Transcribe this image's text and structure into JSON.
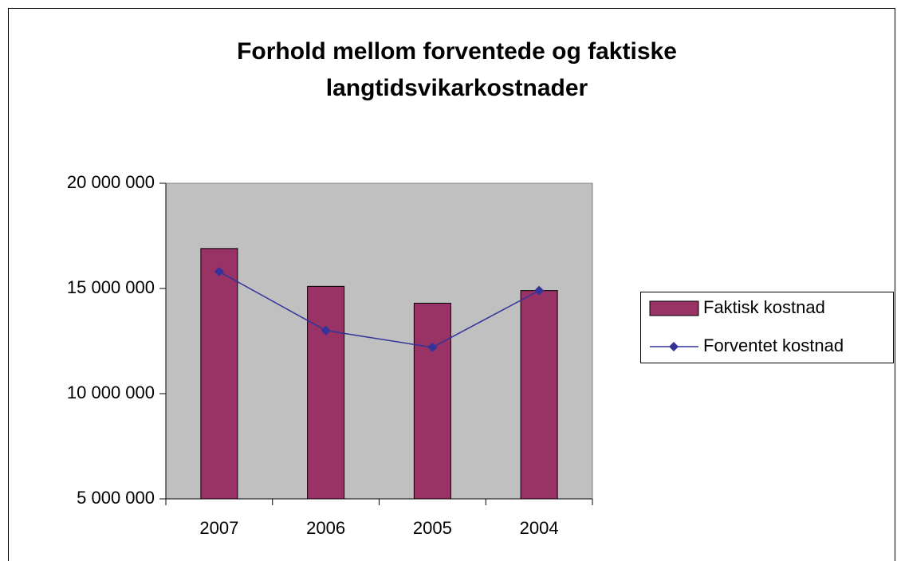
{
  "chart_data": {
    "type": "bar",
    "title": "Forhold mellom forventede og faktiske langtidsvikarkostnader",
    "categories": [
      "2007",
      "2006",
      "2005",
      "2004"
    ],
    "series": [
      {
        "name": "Faktisk kostnad",
        "type": "bar",
        "color": "#993366",
        "values": [
          16900000,
          15100000,
          14300000,
          14900000
        ]
      },
      {
        "name": "Forventet kostnad",
        "type": "line",
        "color": "#333399",
        "values": [
          15800000,
          13000000,
          12200000,
          14900000
        ]
      }
    ],
    "ylim": [
      5000000,
      20000000
    ],
    "yticks": [
      {
        "value": 5000000,
        "label": "5 000 000"
      },
      {
        "value": 10000000,
        "label": "10 000 000"
      },
      {
        "value": 15000000,
        "label": "15 000 000"
      },
      {
        "value": 20000000,
        "label": "20 000 000"
      }
    ],
    "plot_background": "#c0c0c0",
    "legend": "right"
  }
}
